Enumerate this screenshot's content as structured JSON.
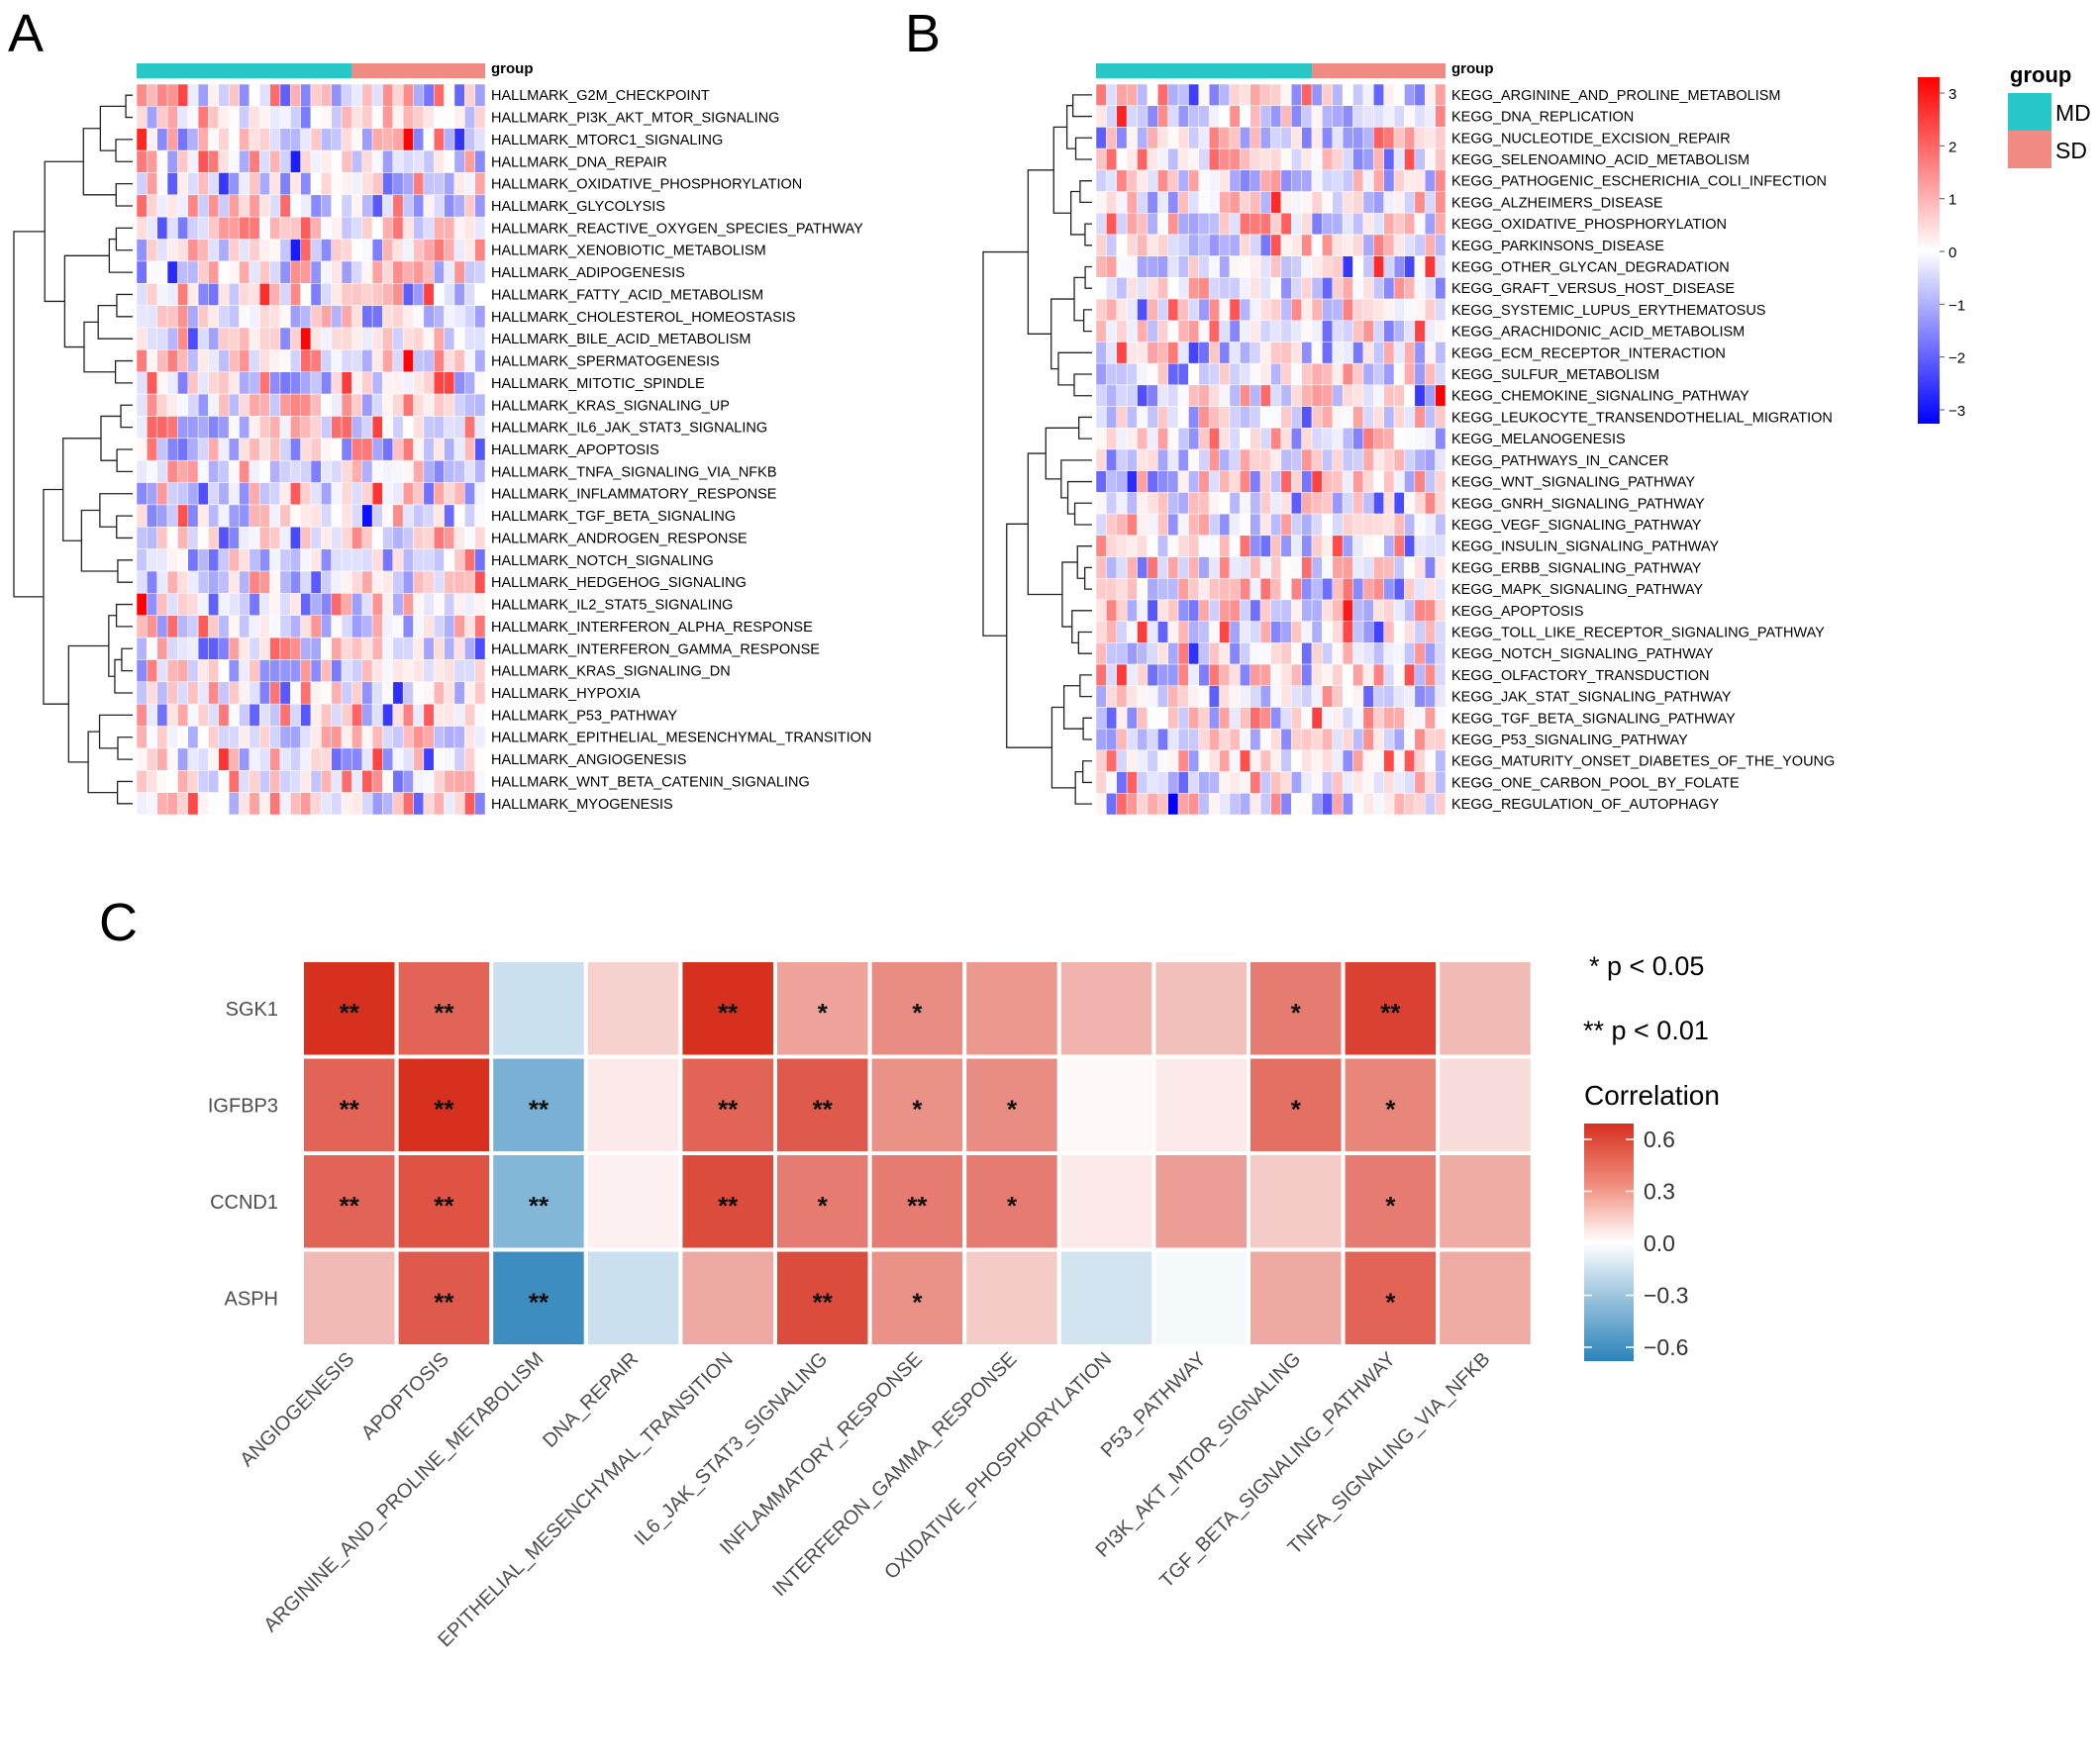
{
  "chart_data": [
    {
      "type": "heatmap",
      "panel_label": "A",
      "annotation_label": "group",
      "groups": [
        {
          "name": "MD",
          "color": "#28C8C8",
          "n_samples": 21
        },
        {
          "name": "SD",
          "color": "#F08A82",
          "n_samples": 13
        }
      ],
      "rows": [
        "HALLMARK_G2M_CHECKPOINT",
        "HALLMARK_PI3K_AKT_MTOR_SIGNALING",
        "HALLMARK_MTORC1_SIGNALING",
        "HALLMARK_DNA_REPAIR",
        "HALLMARK_OXIDATIVE_PHOSPHORYLATION",
        "HALLMARK_GLYCOLYSIS",
        "HALLMARK_REACTIVE_OXYGEN_SPECIES_PATHWAY",
        "HALLMARK_XENOBIOTIC_METABOLISM",
        "HALLMARK_ADIPOGENESIS",
        "HALLMARK_FATTY_ACID_METABOLISM",
        "HALLMARK_CHOLESTEROL_HOMEOSTASIS",
        "HALLMARK_BILE_ACID_METABOLISM",
        "HALLMARK_SPERMATOGENESIS",
        "HALLMARK_MITOTIC_SPINDLE",
        "HALLMARK_KRAS_SIGNALING_UP",
        "HALLMARK_IL6_JAK_STAT3_SIGNALING",
        "HALLMARK_APOPTOSIS",
        "HALLMARK_TNFA_SIGNALING_VIA_NFKB",
        "HALLMARK_INFLAMMATORY_RESPONSE",
        "HALLMARK_TGF_BETA_SIGNALING",
        "HALLMARK_ANDROGEN_RESPONSE",
        "HALLMARK_NOTCH_SIGNALING",
        "HALLMARK_HEDGEHOG_SIGNALING",
        "HALLMARK_IL2_STAT5_SIGNALING",
        "HALLMARK_INTERFERON_ALPHA_RESPONSE",
        "HALLMARK_INTERFERON_GAMMA_RESPONSE",
        "HALLMARK_KRAS_SIGNALING_DN",
        "HALLMARK_HYPOXIA",
        "HALLMARK_P53_PATHWAY",
        "HALLMARK_EPITHELIAL_MESENCHYMAL_TRANSITION",
        "HALLMARK_ANGIOGENESIS",
        "HALLMARK_WNT_BETA_CATENIN_SIGNALING",
        "HALLMARK_MYOGENESIS"
      ],
      "seed": 7
    },
    {
      "type": "heatmap",
      "panel_label": "B",
      "annotation_label": "group",
      "groups": [
        {
          "name": "MD",
          "color": "#28C8C8",
          "n_samples": 21
        },
        {
          "name": "SD",
          "color": "#F08A82",
          "n_samples": 13
        }
      ],
      "rows": [
        "KEGG_ARGININE_AND_PROLINE_METABOLISM",
        "KEGG_DNA_REPLICATION",
        "KEGG_NUCLEOTIDE_EXCISION_REPAIR",
        "KEGG_SELENOAMINO_ACID_METABOLISM",
        "KEGG_PATHOGENIC_ESCHERICHIA_COLI_INFECTION",
        "KEGG_ALZHEIMERS_DISEASE",
        "KEGG_OXIDATIVE_PHOSPHORYLATION",
        "KEGG_PARKINSONS_DISEASE",
        "KEGG_OTHER_GLYCAN_DEGRADATION",
        "KEGG_GRAFT_VERSUS_HOST_DISEASE",
        "KEGG_SYSTEMIC_LUPUS_ERYTHEMATOSUS",
        "KEGG_ARACHIDONIC_ACID_METABOLISM",
        "KEGG_ECM_RECEPTOR_INTERACTION",
        "KEGG_SULFUR_METABOLISM",
        "KEGG_CHEMOKINE_SIGNALING_PATHWAY",
        "KEGG_LEUKOCYTE_TRANSENDOTHELIAL_MIGRATION",
        "KEGG_MELANOGENESIS",
        "KEGG_PATHWAYS_IN_CANCER",
        "KEGG_WNT_SIGNALING_PATHWAY",
        "KEGG_GNRH_SIGNALING_PATHWAY",
        "KEGG_VEGF_SIGNALING_PATHWAY",
        "KEGG_INSULIN_SIGNALING_PATHWAY",
        "KEGG_ERBB_SIGNALING_PATHWAY",
        "KEGG_MAPK_SIGNALING_PATHWAY",
        "KEGG_APOPTOSIS",
        "KEGG_TOLL_LIKE_RECEPTOR_SIGNALING_PATHWAY",
        "KEGG_NOTCH_SIGNALING_PATHWAY",
        "KEGG_OLFACTORY_TRANSDUCTION",
        "KEGG_JAK_STAT_SIGNALING_PATHWAY",
        "KEGG_TGF_BETA_SIGNALING_PATHWAY",
        "KEGG_P53_SIGNALING_PATHWAY",
        "KEGG_MATURITY_ONSET_DIABETES_OF_THE_YOUNG",
        "KEGG_ONE_CARBON_POOL_BY_FOLATE",
        "KEGG_REGULATION_OF_AUTOPHAGY"
      ],
      "seed": 19,
      "colorbar": {
        "ticks": [
          "3",
          "2",
          "1",
          "0",
          "−1",
          "−2",
          "−3"
        ],
        "range": [
          -3,
          3
        ]
      },
      "legend": {
        "title": "group",
        "items": [
          "MD",
          "SD"
        ]
      }
    },
    {
      "type": "heatmap",
      "panel_label": "C",
      "rows": [
        "SGK1",
        "IGFBP3",
        "CCND1",
        "ASPH"
      ],
      "columns": [
        "ANGIOGENESIS",
        "APOPTOSIS",
        "ARGININE_AND_PROLINE_METABOLISM",
        "DNA_REPAIR",
        "EPITHELIAL_MESENCHYMAL_TRANSITION",
        "IL6_JAK_STAT3_SIGNALING",
        "INFLAMMATORY_RESPONSE",
        "INTERFERON_GAMMA_RESPONSE",
        "OXIDATIVE_PHOSPHORYLATION",
        "P53_PATHWAY",
        "PI3K_AKT_MTOR_SIGNALING",
        "TGF_BETA_SIGNALING_PATHWAY",
        "TNFA_SIGNALING_VIA_NFKB"
      ],
      "values": [
        [
          0.62,
          0.45,
          -0.15,
          0.13,
          0.7,
          0.27,
          0.33,
          0.3,
          0.22,
          0.18,
          0.38,
          0.55,
          0.2
        ],
        [
          0.45,
          0.62,
          -0.38,
          0.06,
          0.45,
          0.48,
          0.32,
          0.33,
          0.02,
          0.06,
          0.42,
          0.35,
          0.1
        ],
        [
          0.45,
          0.5,
          -0.35,
          0.04,
          0.52,
          0.38,
          0.38,
          0.38,
          0.06,
          0.28,
          0.15,
          0.38,
          0.24
        ],
        [
          0.2,
          0.48,
          -0.55,
          -0.15,
          0.25,
          0.52,
          0.32,
          0.15,
          -0.13,
          -0.03,
          0.25,
          0.45,
          0.24
        ]
      ],
      "significance": [
        [
          "**",
          "**",
          "",
          "",
          "**",
          "*",
          "*",
          "",
          "",
          "",
          "*",
          "**",
          ""
        ],
        [
          "**",
          "**",
          "**",
          "",
          "**",
          "**",
          "*",
          "*",
          "",
          "",
          "*",
          "*",
          ""
        ],
        [
          "**",
          "**",
          "**",
          "",
          "**",
          "*",
          "**",
          "*",
          "",
          "",
          "",
          "*",
          ""
        ],
        [
          "",
          "**",
          "**",
          "",
          "",
          "**",
          "*",
          "",
          "",
          "",
          "",
          "*",
          ""
        ]
      ],
      "notes": [
        "* p < 0.05",
        "** p < 0.01"
      ],
      "colorbar": {
        "title": "Correlation",
        "ticks": [
          "0.6",
          "0.3",
          "0.0",
          "−0.3",
          "−0.6"
        ],
        "range": [
          -0.6,
          0.6
        ]
      }
    }
  ]
}
